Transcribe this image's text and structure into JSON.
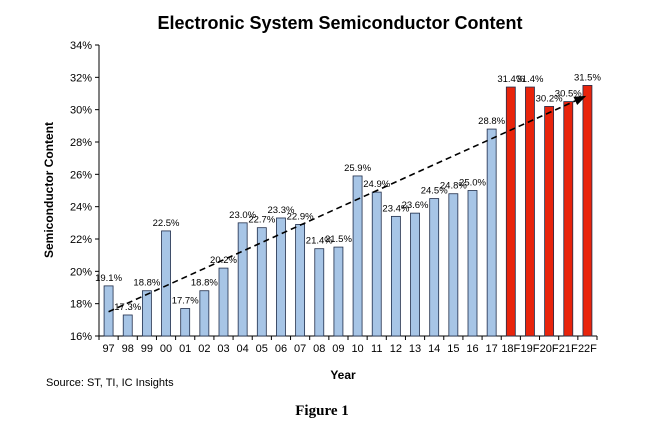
{
  "chart_data": {
    "type": "bar",
    "title": "Electronic System Semiconductor Content",
    "xlabel": "Year",
    "ylabel": "Semiconductor Content",
    "ylim": [
      16,
      34
    ],
    "yticks": [
      "16%",
      "18%",
      "20%",
      "22%",
      "24%",
      "26%",
      "28%",
      "30%",
      "32%",
      "34%"
    ],
    "categories": [
      "97",
      "98",
      "99",
      "00",
      "01",
      "02",
      "03",
      "04",
      "05",
      "06",
      "07",
      "08",
      "09",
      "10",
      "11",
      "12",
      "13",
      "14",
      "15",
      "16",
      "17",
      "18F",
      "19F",
      "20F",
      "21F",
      "22F"
    ],
    "values": [
      19.1,
      17.3,
      18.8,
      22.5,
      17.7,
      18.8,
      20.2,
      23.0,
      22.7,
      23.3,
      22.9,
      21.4,
      21.5,
      25.9,
      24.9,
      23.4,
      23.6,
      24.5,
      24.8,
      25.0,
      28.8,
      31.4,
      31.4,
      30.2,
      30.5,
      31.5
    ],
    "labels": [
      "19.1%",
      "17.3%",
      "18.8%",
      "22.5%",
      "17.7%",
      "18.8%",
      "20.2%",
      "23.0%",
      "22.7%",
      "23.3%",
      "22.9%",
      "21.4%",
      "21.5%",
      "25.9%",
      "24.9%",
      "23.4%",
      "23.6%",
      "24.5%",
      "24.8%",
      "25.0%",
      "28.8%",
      "31.4%",
      "31.4%",
      "30.2%",
      "30.5%",
      "31.5%"
    ],
    "bar_kind": [
      "actual",
      "actual",
      "actual",
      "actual",
      "actual",
      "actual",
      "actual",
      "actual",
      "actual",
      "actual",
      "actual",
      "actual",
      "actual",
      "actual",
      "actual",
      "actual",
      "actual",
      "actual",
      "actual",
      "actual",
      "actual",
      "forecast",
      "forecast",
      "forecast",
      "forecast",
      "forecast"
    ],
    "colors": {
      "actual": "#a7c5e6",
      "forecast": "#e8240c",
      "outline": "#1f2d4a"
    },
    "trendline": {
      "style": "dashed",
      "from": {
        "x": "97",
        "y": 17.5
      },
      "to": {
        "x": "22F",
        "y": 30.8
      }
    },
    "grid": false,
    "legend": "none"
  },
  "footer": {
    "source": "Source: ST, TI, IC Insights",
    "caption": "Figure 1"
  }
}
